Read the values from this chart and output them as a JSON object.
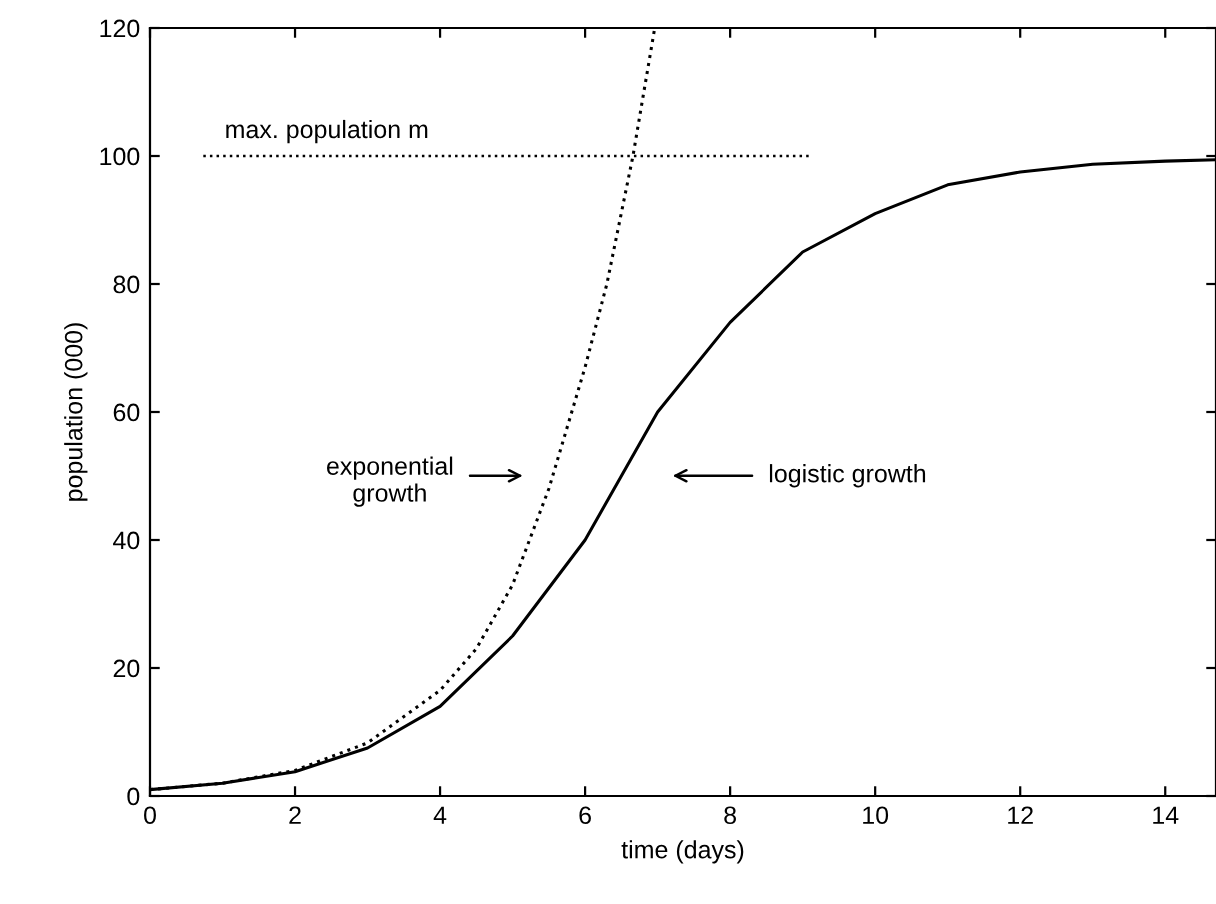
{
  "chart_data": {
    "type": "line",
    "xlabel": "time (days)",
    "ylabel": "population (000)",
    "xlim": [
      0,
      14.7
    ],
    "ylim": [
      0,
      120
    ],
    "xticks": [
      0,
      2,
      4,
      6,
      8,
      10,
      12,
      14
    ],
    "yticks": [
      0,
      20,
      40,
      60,
      80,
      100,
      120
    ],
    "grid": false,
    "legend": false,
    "marker": "none",
    "series": [
      {
        "color": "#000000",
        "line_style": "dotted",
        "x": [
          0,
          1,
          2,
          3,
          4,
          4.5,
          5,
          5.5,
          6,
          6.3,
          6.66,
          6.96
        ],
        "values": [
          1,
          2,
          4,
          8.3,
          16.5,
          23,
          33,
          48,
          67,
          80,
          100,
          120
        ]
      },
      {
        "color": "#000000",
        "line_style": "solid",
        "x": [
          0,
          1,
          2,
          3,
          4,
          5,
          6,
          6.5,
          7,
          8,
          9,
          10,
          11,
          12,
          13,
          14,
          14.7
        ],
        "values": [
          1,
          2,
          3.8,
          7.5,
          14,
          25,
          40,
          50,
          60,
          74,
          85,
          91,
          95.5,
          97.5,
          98.7,
          99.2,
          99.4
        ]
      }
    ],
    "ref_lines": [
      {
        "axis": "y",
        "value": 100,
        "label": "max. population m",
        "line_style": "dotted",
        "color": "#000000"
      }
    ],
    "annotations": [
      "exponential\ngrowth",
      "logistic growth"
    ]
  }
}
